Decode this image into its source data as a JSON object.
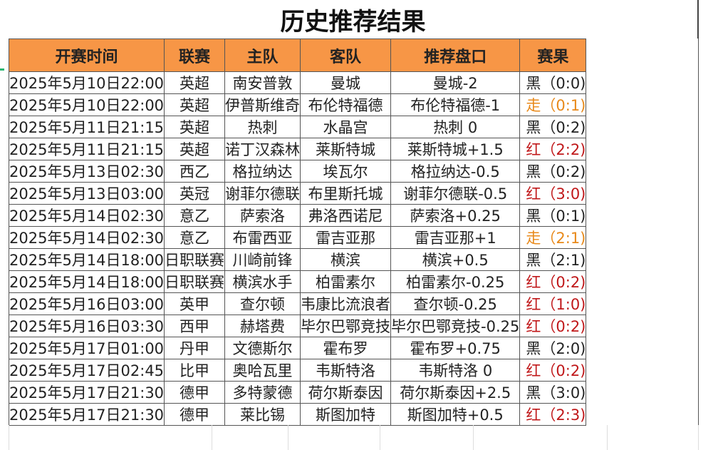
{
  "title": "历史推荐结果",
  "headers": [
    "开赛时间",
    "联赛",
    "主队",
    "客队",
    "推荐盘口",
    "赛果"
  ],
  "colors": {
    "header_bg": "#f79646",
    "red": "#c0181a",
    "push": "#e8891a",
    "black": "#222222"
  },
  "rows": [
    {
      "time": "2025年5月10日22:00",
      "league": "英超",
      "home": "南安普敦",
      "away": "曼城",
      "pick": "曼城-2",
      "result": "黑（0:0)",
      "status": "black"
    },
    {
      "time": "2025年5月10日22:00",
      "league": "英超",
      "home": "伊普斯维奇",
      "away": "布伦特福德",
      "pick": "布伦特福德-1",
      "result": "走（0:1)",
      "status": "push"
    },
    {
      "time": "2025年5月11日21:15",
      "league": "英超",
      "home": "热刺",
      "away": "水晶宫",
      "pick": "热刺 0",
      "result": "黑（0:2)",
      "status": "black"
    },
    {
      "time": "2025年5月11日21:15",
      "league": "英超",
      "home": "诺丁汉森林",
      "away": "莱斯特城",
      "pick": "莱斯特城+1.5",
      "result": "红（2:2)",
      "status": "red"
    },
    {
      "time": "2025年5月13日02:30",
      "league": "西乙",
      "home": "格拉纳达",
      "away": "埃瓦尔",
      "pick": "格拉纳达-0.5",
      "result": "黑（0:2)",
      "status": "black"
    },
    {
      "time": "2025年5月13日03:00",
      "league": "英冠",
      "home": "谢菲尔德联",
      "away": "布里斯托城",
      "pick": "谢菲尔德联-0.5",
      "result": "红（3:0)",
      "status": "red"
    },
    {
      "time": "2025年5月14日02:30",
      "league": "意乙",
      "home": "萨索洛",
      "away": "弗洛西诺尼",
      "pick": "萨索洛+0.25",
      "result": "黑（0:1)",
      "status": "black"
    },
    {
      "time": "2025年5月14日02:30",
      "league": "意乙",
      "home": "布雷西亚",
      "away": "雷吉亚那",
      "pick": "雷吉亚那+1",
      "result": "走（2:1)",
      "status": "push"
    },
    {
      "time": "2025年5月14日18:00",
      "league": "日职联赛",
      "home": "川崎前锋",
      "away": "横滨",
      "pick": "横滨+0.5",
      "result": "黑（2:1)",
      "status": "black"
    },
    {
      "time": "2025年5月14日18:00",
      "league": "日职联赛",
      "home": "横滨水手",
      "away": "柏雷素尔",
      "pick": "柏雷素尔-0.25",
      "result": "红（0:2)",
      "status": "red"
    },
    {
      "time": "2025年5月16日03:00",
      "league": "英甲",
      "home": "查尔顿",
      "away": "韦康比流浪者",
      "pick": "查尔顿-0.25",
      "result": "红（1:0)",
      "status": "red"
    },
    {
      "time": "2025年5月16日03:30",
      "league": "西甲",
      "home": "赫塔费",
      "away": "毕尔巴鄂竞技",
      "pick": "毕尔巴鄂竞技-0.25",
      "result": "红（0:2)",
      "status": "red"
    },
    {
      "time": "2025年5月17日01:00",
      "league": "丹甲",
      "home": "文德斯尔",
      "away": "霍布罗",
      "pick": "霍布罗+0.75",
      "result": "黑（2:0)",
      "status": "black"
    },
    {
      "time": "2025年5月17日02:45",
      "league": "比甲",
      "home": "奥哈瓦里",
      "away": "韦斯特洛",
      "pick": "韦斯特洛 0",
      "result": "红（0:2)",
      "status": "red"
    },
    {
      "time": "2025年5月17日21:30",
      "league": "德甲",
      "home": "多特蒙德",
      "away": "荷尔斯泰因",
      "pick": "荷尔斯泰因+2.5",
      "result": "黑（3:0)",
      "status": "black"
    },
    {
      "time": "2025年5月17日21:30",
      "league": "德甲",
      "home": "莱比锡",
      "away": "斯图加特",
      "pick": "斯图加特+0.5",
      "result": "红（2:3)",
      "status": "red"
    }
  ]
}
